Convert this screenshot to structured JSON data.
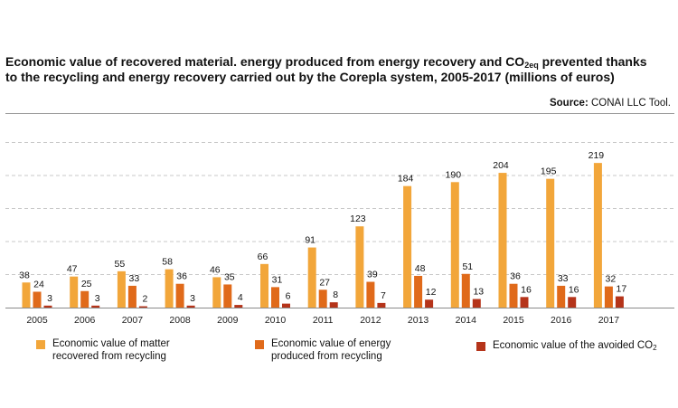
{
  "header": {
    "title_line1_pre": "Economic value of recovered material. energy produced from energy recovery and CO",
    "title_line1_sub": "2eq",
    "title_line1_post": " prevented thanks",
    "title_line2": "to the recycling and energy recovery carried out by the Corepla system, 2005-2017 (millions of euros)",
    "source_label": "Source:",
    "source_value": "CONAI LLC Tool."
  },
  "legend": {
    "matter_label": "Economic value of matter\nrecovered from recycling",
    "energy_label": "Economic value of energy\nproduced from recycling",
    "avoided_label_pre": "Economic value of the avoided CO",
    "avoided_label_sub": "2"
  },
  "colors": {
    "matter": "#f2a63a",
    "energy": "#e06a1a",
    "avoided": "#b5341a",
    "grid": "#c8c8c8",
    "axis": "#8a8a8a"
  },
  "chart_data": {
    "type": "bar",
    "categories": [
      "2005",
      "2006",
      "2007",
      "2008",
      "2009",
      "2010",
      "2011",
      "2012",
      "2013",
      "2014",
      "2015",
      "2016",
      "2017"
    ],
    "series": [
      {
        "name": "Economic value of matter recovered from recycling",
        "values": [
          38,
          47,
          55,
          58,
          46,
          66,
          91,
          123,
          184,
          190,
          204,
          195,
          219
        ]
      },
      {
        "name": "Economic value of energy produced from recycling",
        "values": [
          24,
          25,
          33,
          36,
          35,
          31,
          27,
          39,
          48,
          51,
          36,
          33,
          32
        ]
      },
      {
        "name": "Economic value of the avoided CO2",
        "values": [
          3,
          3,
          2,
          3,
          4,
          6,
          8,
          7,
          12,
          13,
          16,
          16,
          17
        ]
      }
    ],
    "ylim": [
      0,
      250
    ],
    "grid": true,
    "legend_position": "bottom"
  }
}
